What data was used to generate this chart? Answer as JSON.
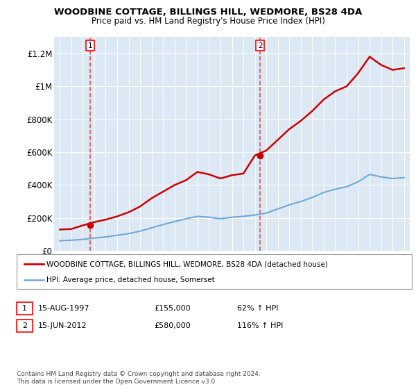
{
  "title": "WOODBINE COTTAGE, BILLINGS HILL, WEDMORE, BS28 4DA",
  "subtitle": "Price paid vs. HM Land Registry's House Price Index (HPI)",
  "background_color": "#dce9f5",
  "plot_bg_color": "#dce9f5",
  "legend_line1": "WOODBINE COTTAGE, BILLINGS HILL, WEDMORE, BS28 4DA (detached house)",
  "legend_line2": "HPI: Average price, detached house, Somerset",
  "footnote": "Contains HM Land Registry data © Crown copyright and database right 2024.\nThis data is licensed under the Open Government Licence v3.0.",
  "sale1_date": "15-AUG-1997",
  "sale1_price": "£155,000",
  "sale1_hpi": "62% ↑ HPI",
  "sale1_year": 1997.62,
  "sale1_value": 155000,
  "sale2_date": "15-JUN-2012",
  "sale2_price": "£580,000",
  "sale2_hpi": "116% ↑ HPI",
  "sale2_year": 2012.46,
  "sale2_value": 580000,
  "hpi_color": "#6ea8d8",
  "house_color": "#cc0000",
  "dashed_color": "#e05050",
  "years": [
    1995,
    1996,
    1997,
    1998,
    1999,
    2000,
    2001,
    2002,
    2003,
    2004,
    2005,
    2006,
    2007,
    2008,
    2009,
    2010,
    2011,
    2012,
    2013,
    2014,
    2015,
    2016,
    2017,
    2018,
    2019,
    2020,
    2021,
    2022,
    2023,
    2024,
    2025
  ],
  "hpi_values": [
    62000,
    65000,
    70000,
    78000,
    85000,
    95000,
    105000,
    120000,
    140000,
    160000,
    178000,
    195000,
    210000,
    205000,
    195000,
    205000,
    210000,
    218000,
    230000,
    255000,
    280000,
    300000,
    325000,
    355000,
    375000,
    390000,
    420000,
    465000,
    450000,
    440000,
    445000
  ],
  "house_values": [
    130000,
    133000,
    155000,
    175000,
    190000,
    210000,
    235000,
    270000,
    320000,
    360000,
    400000,
    430000,
    480000,
    465000,
    440000,
    460000,
    470000,
    580000,
    610000,
    675000,
    740000,
    790000,
    850000,
    920000,
    970000,
    1000000,
    1080000,
    1180000,
    1130000,
    1100000,
    1110000
  ],
  "ylim": [
    0,
    1300000
  ],
  "yticks": [
    0,
    200000,
    400000,
    600000,
    800000,
    1000000,
    1200000
  ],
  "ytick_labels": [
    "£0",
    "£200K",
    "£400K",
    "£600K",
    "£800K",
    "£1M",
    "£1.2M"
  ]
}
